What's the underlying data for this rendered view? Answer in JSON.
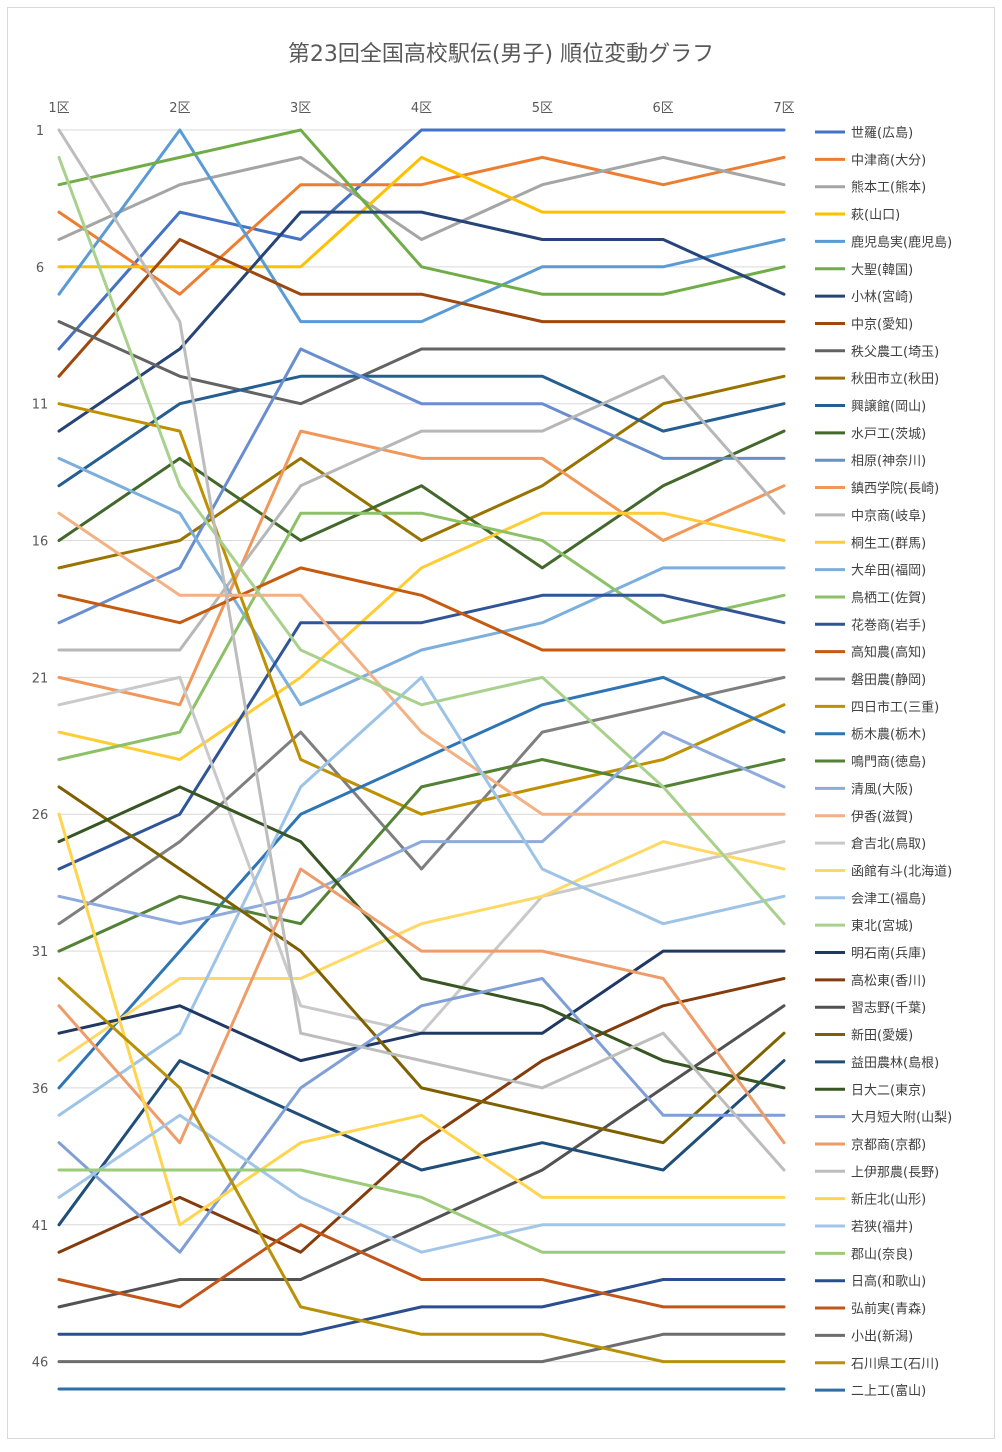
{
  "chart_data": {
    "type": "line",
    "title": "第23回全国高校駅伝(男子) 順位変動グラフ",
    "categories": [
      "1区",
      "2区",
      "3区",
      "4区",
      "5区",
      "6区",
      "7区"
    ],
    "y_ticks": [
      1,
      6,
      11,
      16,
      21,
      26,
      31,
      36,
      41,
      46
    ],
    "ylim": [
      1,
      47
    ],
    "y_inverted": true,
    "grid": true,
    "legend_position": "right",
    "series": [
      {
        "name": "世羅(広島)",
        "color": "#4472C4",
        "values": [
          9,
          4,
          5,
          1,
          1,
          1,
          1
        ]
      },
      {
        "name": "中津商(大分)",
        "color": "#ED7D31",
        "values": [
          4,
          7,
          3,
          3,
          2,
          3,
          2
        ]
      },
      {
        "name": "熊本工(熊本)",
        "color": "#A5A5A5",
        "values": [
          5,
          3,
          2,
          5,
          3,
          2,
          3
        ]
      },
      {
        "name": "萩(山口)",
        "color": "#FFC000",
        "values": [
          6,
          6,
          6,
          2,
          4,
          4,
          4
        ]
      },
      {
        "name": "鹿児島実(鹿児島)",
        "color": "#5B9BD5",
        "values": [
          7,
          1,
          8,
          8,
          6,
          6,
          5
        ]
      },
      {
        "name": "大聖(韓国)",
        "color": "#70AD47",
        "values": [
          3,
          2,
          1,
          6,
          7,
          7,
          6
        ]
      },
      {
        "name": "小林(宮崎)",
        "color": "#264478",
        "values": [
          12,
          9,
          4,
          4,
          5,
          5,
          7
        ]
      },
      {
        "name": "中京(愛知)",
        "color": "#9E480E",
        "values": [
          10,
          5,
          7,
          7,
          8,
          8,
          8
        ]
      },
      {
        "name": "秩父農工(埼玉)",
        "color": "#636363",
        "values": [
          8,
          10,
          11,
          9,
          9,
          9,
          9
        ]
      },
      {
        "name": "秋田市立(秋田)",
        "color": "#997300",
        "values": [
          17,
          16,
          13,
          16,
          14,
          11,
          10
        ]
      },
      {
        "name": "興譲館(岡山)",
        "color": "#255E91",
        "values": [
          14,
          11,
          10,
          10,
          10,
          12,
          11
        ]
      },
      {
        "name": "水戸工(茨城)",
        "color": "#43682B",
        "values": [
          16,
          13,
          16,
          14,
          17,
          14,
          12
        ]
      },
      {
        "name": "相原(神奈川)",
        "color": "#698ED0",
        "values": [
          19,
          17,
          9,
          11,
          11,
          13,
          13
        ]
      },
      {
        "name": "鎮西学院(長崎)",
        "color": "#F1975A",
        "values": [
          21,
          22,
          12,
          13,
          13,
          16,
          14
        ]
      },
      {
        "name": "中京商(岐阜)",
        "color": "#B7B7B7",
        "values": [
          20,
          20,
          14,
          12,
          12,
          10,
          15
        ]
      },
      {
        "name": "桐生工(群馬)",
        "color": "#FFCD33",
        "values": [
          23,
          24,
          21,
          17,
          15,
          15,
          16
        ]
      },
      {
        "name": "大牟田(福岡)",
        "color": "#7CAFDD",
        "values": [
          13,
          15,
          22,
          20,
          19,
          17,
          17
        ]
      },
      {
        "name": "鳥栖工(佐賀)",
        "color": "#8CC168",
        "values": [
          24,
          23,
          15,
          15,
          16,
          19,
          18
        ]
      },
      {
        "name": "花巻商(岩手)",
        "color": "#2F5597",
        "values": [
          28,
          26,
          19,
          19,
          18,
          18,
          19
        ]
      },
      {
        "name": "高知農(高知)",
        "color": "#C55A11",
        "values": [
          18,
          19,
          17,
          18,
          20,
          20,
          20
        ]
      },
      {
        "name": "磐田農(静岡)",
        "color": "#7F7F7F",
        "values": [
          30,
          27,
          23,
          28,
          23,
          22,
          21
        ]
      },
      {
        "name": "四日市工(三重)",
        "color": "#BF9000",
        "values": [
          11,
          12,
          24,
          26,
          25,
          24,
          22
        ]
      },
      {
        "name": "栃木農(栃木)",
        "color": "#2E75B6",
        "values": [
          36,
          31,
          26,
          24,
          22,
          21,
          23
        ]
      },
      {
        "name": "鳴門商(徳島)",
        "color": "#548235",
        "values": [
          31,
          29,
          30,
          25,
          24,
          25,
          24
        ]
      },
      {
        "name": "清風(大阪)",
        "color": "#8FAADC",
        "values": [
          29,
          30,
          29,
          27,
          27,
          23,
          25
        ]
      },
      {
        "name": "伊香(滋賀)",
        "color": "#F4B183",
        "values": [
          15,
          18,
          18,
          23,
          26,
          26,
          26
        ]
      },
      {
        "name": "倉吉北(鳥取)",
        "color": "#C9C9C9",
        "values": [
          22,
          21,
          33,
          34,
          29,
          28,
          27
        ]
      },
      {
        "name": "函館有斗(北海道)",
        "color": "#FFD966",
        "values": [
          35,
          32,
          32,
          30,
          29,
          27,
          28
        ]
      },
      {
        "name": "会津工(福島)",
        "color": "#9DC3E6",
        "values": [
          37,
          34,
          25,
          21,
          28,
          30,
          29
        ]
      },
      {
        "name": "東北(宮城)",
        "color": "#A9D18E",
        "values": [
          2,
          14,
          20,
          22,
          21,
          25,
          30
        ]
      },
      {
        "name": "明石南(兵庫)",
        "color": "#203864",
        "values": [
          34,
          33,
          35,
          34,
          34,
          31,
          31
        ]
      },
      {
        "name": "高松東(香川)",
        "color": "#843C0C",
        "values": [
          42,
          40,
          42,
          38,
          35,
          33,
          32
        ]
      },
      {
        "name": "習志野(千葉)",
        "color": "#525252",
        "values": [
          44,
          43,
          43,
          41,
          39,
          36,
          33
        ]
      },
      {
        "name": "新田(愛媛)",
        "color": "#7F6000",
        "values": [
          25,
          28,
          31,
          36,
          37,
          38,
          34
        ]
      },
      {
        "name": "益田農林(島根)",
        "color": "#1F4E79",
        "values": [
          41,
          35,
          37,
          39,
          38,
          39,
          35
        ]
      },
      {
        "name": "日大二(東京)",
        "color": "#375623",
        "values": [
          27,
          25,
          27,
          32,
          33,
          35,
          36
        ]
      },
      {
        "name": "大月短大附(山梨)",
        "color": "#7F9FD7",
        "values": [
          38,
          42,
          36,
          33,
          32,
          37,
          37
        ]
      },
      {
        "name": "京都商(京都)",
        "color": "#EE9C69",
        "values": [
          33,
          38,
          28,
          31,
          31,
          32,
          38
        ]
      },
      {
        "name": "上伊那農(長野)",
        "color": "#BDBDBD",
        "values": [
          1,
          8,
          34,
          35,
          36,
          34,
          39
        ]
      },
      {
        "name": "新庄北(山形)",
        "color": "#FFD54F",
        "values": [
          26,
          41,
          38,
          37,
          40,
          40,
          40
        ]
      },
      {
        "name": "若狭(福井)",
        "color": "#A3C6E8",
        "values": [
          40,
          37,
          40,
          42,
          41,
          41,
          41
        ]
      },
      {
        "name": "郡山(奈良)",
        "color": "#9CCB7A",
        "values": [
          39,
          39,
          39,
          40,
          42,
          42,
          42
        ]
      },
      {
        "name": "日高(和歌山)",
        "color": "#2A4E8F",
        "values": [
          45,
          45,
          45,
          44,
          44,
          43,
          43
        ]
      },
      {
        "name": "弘前実(青森)",
        "color": "#C0561A",
        "values": [
          43,
          44,
          41,
          43,
          43,
          44,
          44
        ]
      },
      {
        "name": "小出(新潟)",
        "color": "#6D6D6D",
        "values": [
          46,
          46,
          46,
          46,
          46,
          45,
          45
        ]
      },
      {
        "name": "石川県工(石川)",
        "color": "#B8900A",
        "values": [
          32,
          36,
          44,
          45,
          45,
          46,
          46
        ]
      },
      {
        "name": "二上工(富山)",
        "color": "#2E6FA8",
        "values": [
          47,
          47,
          47,
          47,
          47,
          47,
          47
        ]
      }
    ]
  }
}
